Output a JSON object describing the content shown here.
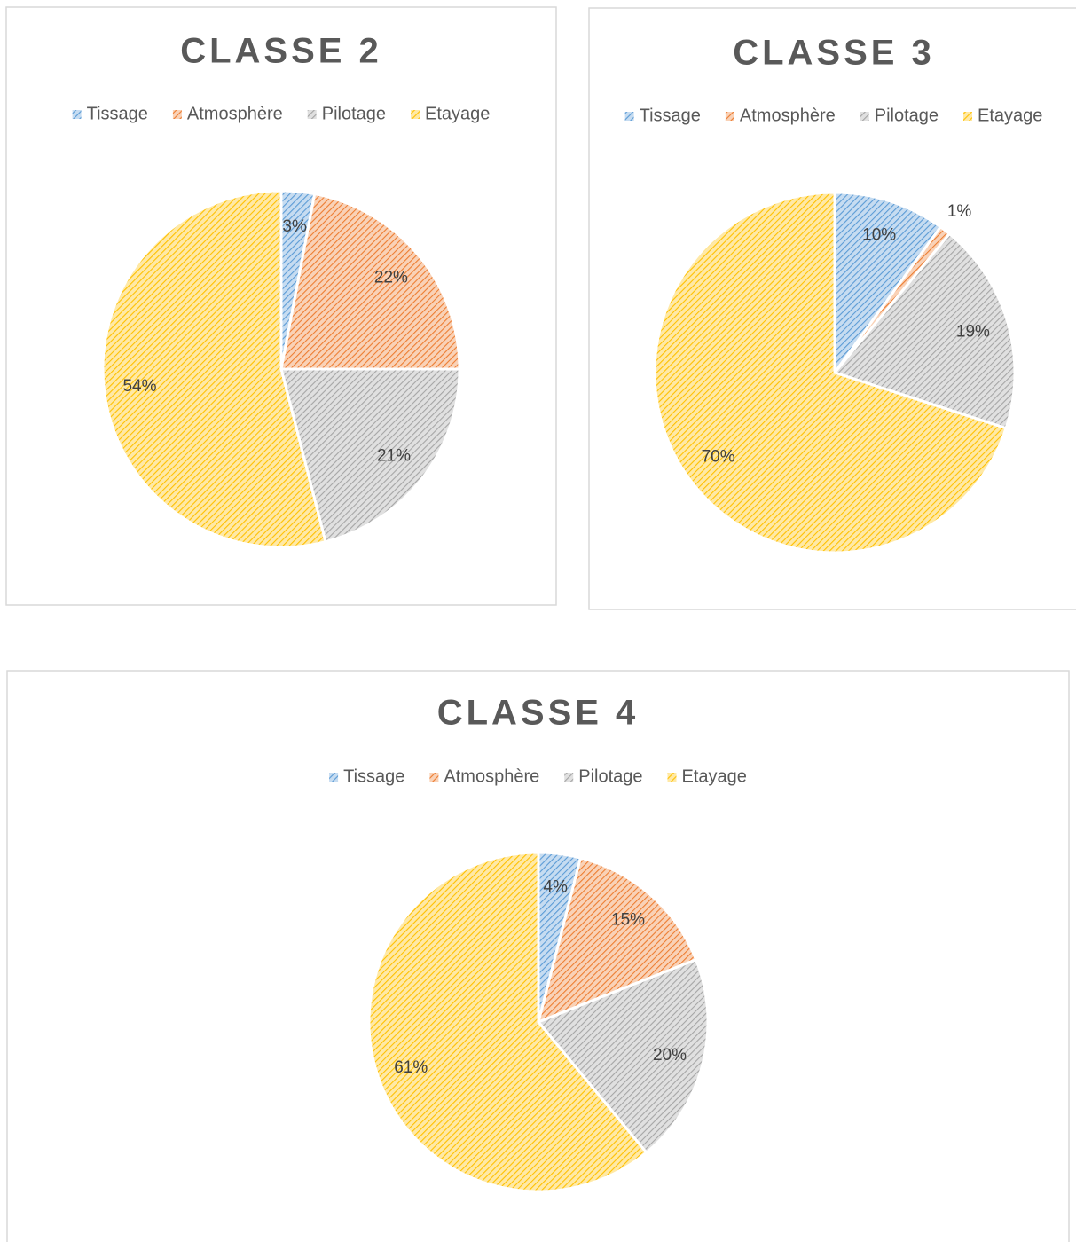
{
  "chart_data": [
    {
      "type": "pie",
      "title": "CLASSE 2",
      "categories": [
        "Tissage",
        "Atmosphère",
        "Pilotage",
        "Etayage"
      ],
      "values": [
        3,
        22,
        21,
        54
      ],
      "value_labels": [
        "3%",
        "22%",
        "21%",
        "54%"
      ],
      "colors": [
        "#5b9bd5",
        "#ed7d31",
        "#a5a5a5",
        "#ffc000"
      ],
      "legend": "top"
    },
    {
      "type": "pie",
      "title": "CLASSE 3",
      "categories": [
        "Tissage",
        "Atmosphère",
        "Pilotage",
        "Etayage"
      ],
      "values": [
        10,
        1,
        19,
        70
      ],
      "value_labels": [
        "10%",
        "1%",
        "19%",
        "70%"
      ],
      "colors": [
        "#5b9bd5",
        "#ed7d31",
        "#a5a5a5",
        "#ffc000"
      ],
      "legend": "top"
    },
    {
      "type": "pie",
      "title": "CLASSE 4",
      "categories": [
        "Tissage",
        "Atmosphère",
        "Pilotage",
        "Etayage"
      ],
      "values": [
        4,
        15,
        20,
        61
      ],
      "value_labels": [
        "4%",
        "15%",
        "20%",
        "61%"
      ],
      "colors": [
        "#5b9bd5",
        "#ed7d31",
        "#a5a5a5",
        "#ffc000"
      ],
      "legend": "top"
    }
  ]
}
